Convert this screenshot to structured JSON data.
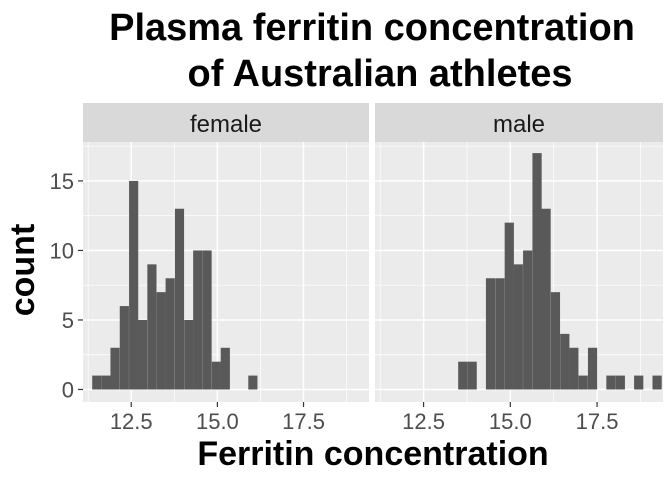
{
  "chart_data": {
    "type": "bar",
    "title_lines": [
      "Plasma ferritin concentration",
      "of Australian athletes"
    ],
    "xlabel": "Ferritin concentration",
    "ylabel": "count",
    "xlim": [
      11.1,
      19.4
    ],
    "ylim": [
      -0.9,
      17.8
    ],
    "x_ticks": [
      12.5,
      15.0,
      17.5
    ],
    "x_tick_labels": [
      "12.5",
      "15.0",
      "17.5"
    ],
    "y_ticks": [
      0,
      5,
      10,
      15
    ],
    "y_tick_labels": [
      "0",
      "5",
      "10",
      "15"
    ],
    "bin_width": 0.266,
    "grid": true,
    "colors": {
      "bar": "#595959",
      "panel": "#ebebeb",
      "strip": "#d9d9d9",
      "grid": "#ffffff"
    },
    "panels": [
      {
        "label": "female",
        "bins": [
          {
            "x": 11.5,
            "count": 1
          },
          {
            "x": 11.77,
            "count": 1
          },
          {
            "x": 12.03,
            "count": 3
          },
          {
            "x": 12.3,
            "count": 6
          },
          {
            "x": 12.57,
            "count": 15
          },
          {
            "x": 12.83,
            "count": 5
          },
          {
            "x": 13.1,
            "count": 9
          },
          {
            "x": 13.37,
            "count": 7
          },
          {
            "x": 13.63,
            "count": 8
          },
          {
            "x": 13.9,
            "count": 13
          },
          {
            "x": 14.17,
            "count": 5
          },
          {
            "x": 14.43,
            "count": 10
          },
          {
            "x": 14.7,
            "count": 10
          },
          {
            "x": 14.97,
            "count": 2
          },
          {
            "x": 15.23,
            "count": 3
          },
          {
            "x": 16.03,
            "count": 1
          }
        ]
      },
      {
        "label": "male",
        "bins": [
          {
            "x": 13.63,
            "count": 2
          },
          {
            "x": 13.9,
            "count": 2
          },
          {
            "x": 14.43,
            "count": 8
          },
          {
            "x": 14.7,
            "count": 8
          },
          {
            "x": 14.97,
            "count": 12
          },
          {
            "x": 15.23,
            "count": 9
          },
          {
            "x": 15.5,
            "count": 10
          },
          {
            "x": 15.77,
            "count": 17
          },
          {
            "x": 16.03,
            "count": 13
          },
          {
            "x": 16.3,
            "count": 7
          },
          {
            "x": 16.57,
            "count": 4
          },
          {
            "x": 16.83,
            "count": 3
          },
          {
            "x": 17.1,
            "count": 1
          },
          {
            "x": 17.37,
            "count": 3
          },
          {
            "x": 17.9,
            "count": 1
          },
          {
            "x": 18.17,
            "count": 1
          },
          {
            "x": 18.7,
            "count": 1
          },
          {
            "x": 19.23,
            "count": 1
          }
        ]
      }
    ]
  }
}
